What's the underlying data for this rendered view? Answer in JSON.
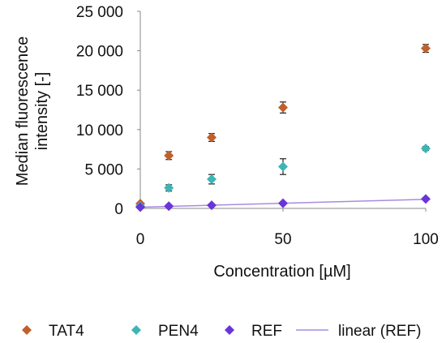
{
  "chart_data": {
    "type": "scatter",
    "xlabel": "Concentration [µM]",
    "ylabel": "Median fluorescence intensity [-]",
    "xlim": [
      0,
      100
    ],
    "ylim": [
      0,
      25000
    ],
    "x_ticks": [
      0,
      50,
      100
    ],
    "x_tick_labels": [
      "0",
      "50",
      "100"
    ],
    "y_ticks": [
      0,
      5000,
      10000,
      15000,
      20000,
      25000
    ],
    "y_tick_labels": [
      "0",
      "5 000",
      "10 000",
      "15 000",
      "20 000",
      "25 000"
    ],
    "grid": false,
    "legend_position": "bottom",
    "series": [
      {
        "name": "TAT4",
        "marker": "diamond",
        "color": "#C0602A",
        "points": [
          {
            "x": 0,
            "y": 600,
            "err": 150
          },
          {
            "x": 10,
            "y": 6700,
            "err": 500
          },
          {
            "x": 25,
            "y": 9000,
            "err": 500
          },
          {
            "x": 50,
            "y": 12800,
            "err": 700
          },
          {
            "x": 100,
            "y": 20300,
            "err": 500
          }
        ]
      },
      {
        "name": "PEN4",
        "marker": "diamond",
        "color": "#3DB5B5",
        "points": [
          {
            "x": 0,
            "y": 300,
            "err": 150
          },
          {
            "x": 10,
            "y": 2600,
            "err": 400
          },
          {
            "x": 25,
            "y": 3700,
            "err": 600
          },
          {
            "x": 50,
            "y": 5300,
            "err": 1000
          },
          {
            "x": 100,
            "y": 7600,
            "err": 250
          }
        ]
      },
      {
        "name": "REF",
        "marker": "diamond",
        "color": "#6A35D8",
        "points": [
          {
            "x": 0,
            "y": 150,
            "err": 80
          },
          {
            "x": 10,
            "y": 280,
            "err": 80
          },
          {
            "x": 25,
            "y": 400,
            "err": 80
          },
          {
            "x": 50,
            "y": 650,
            "err": 100
          },
          {
            "x": 100,
            "y": 1200,
            "err": 150
          }
        ]
      }
    ],
    "trendlines": [
      {
        "name": "linear (REF)",
        "type": "linear",
        "of_series": "REF",
        "color": "#A98BE0",
        "from": {
          "x": 0,
          "y": 150
        },
        "to": {
          "x": 100,
          "y": 1150
        }
      }
    ]
  }
}
